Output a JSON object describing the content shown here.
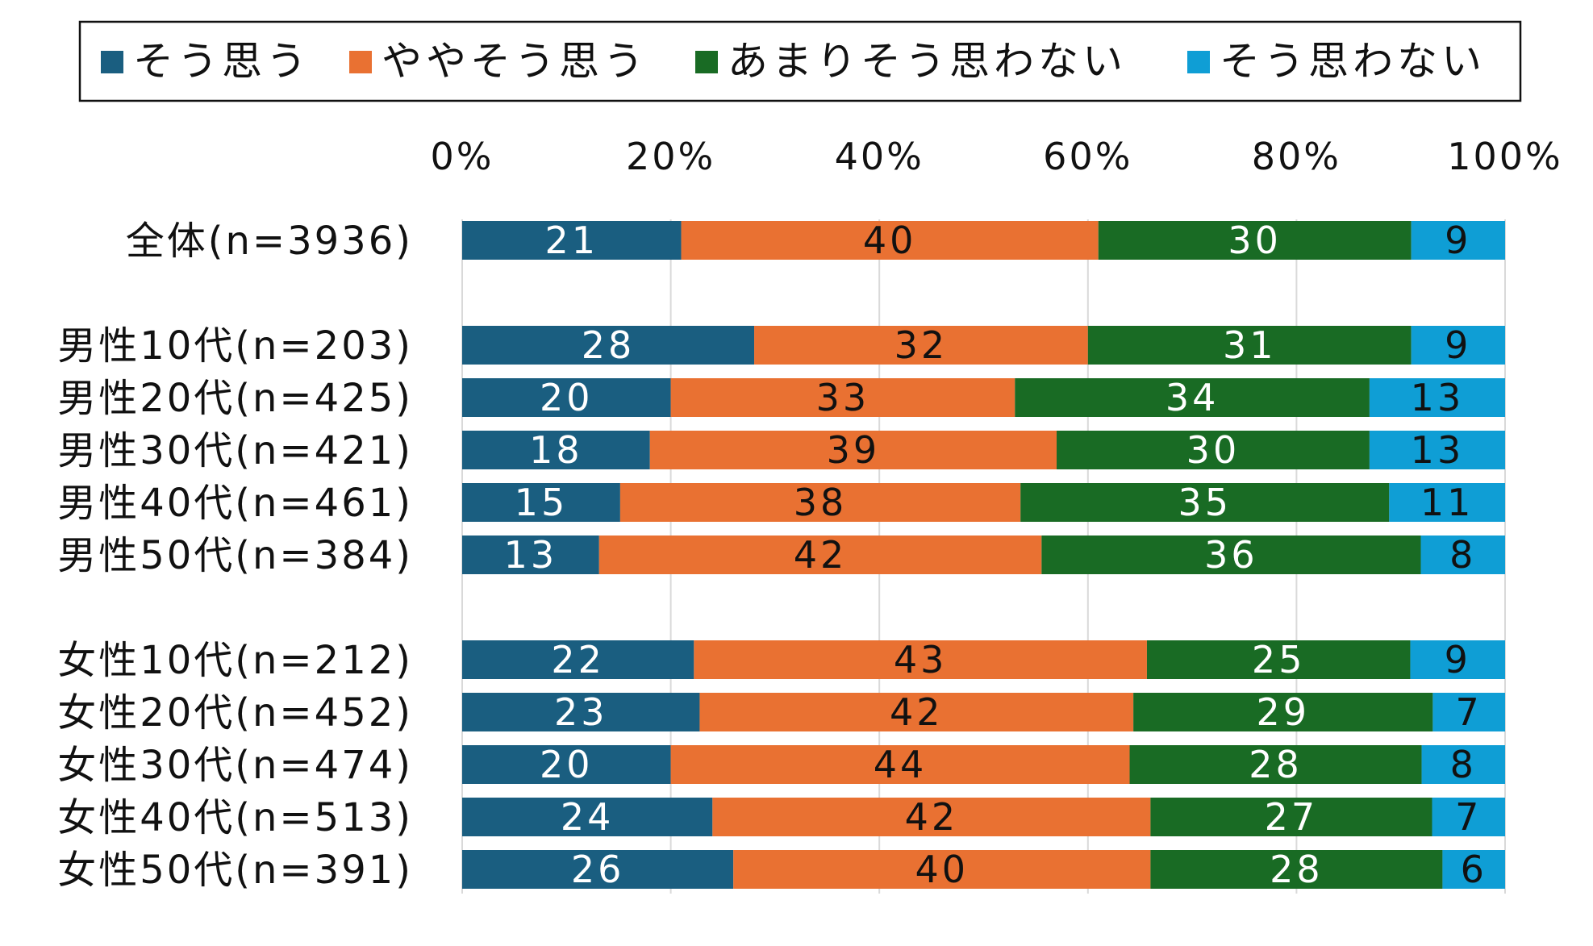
{
  "chart_data": {
    "type": "bar",
    "orientation": "horizontal",
    "stacked": true,
    "percent_stacked": true,
    "categories": [
      "全体(n=3936)",
      "男性10代(n=203)",
      "男性20代(n=425)",
      "男性30代(n=421)",
      "男性40代(n=461)",
      "男性50代(n=384)",
      "女性10代(n=212)",
      "女性20代(n=452)",
      "女性30代(n=474)",
      "女性40代(n=513)",
      "女性50代(n=391)"
    ],
    "series": [
      {
        "name": "そう思う",
        "color": "#1a5e80",
        "label_color": "#ffffff",
        "values": [
          21,
          28,
          20,
          18,
          15,
          13,
          22,
          23,
          20,
          24,
          26
        ]
      },
      {
        "name": "ややそう思う",
        "color": "#e97132",
        "label_color": "#111111",
        "values": [
          40,
          32,
          33,
          39,
          38,
          42,
          43,
          42,
          44,
          42,
          40
        ]
      },
      {
        "name": "あまりそう思わない",
        "color": "#196b24",
        "label_color": "#ffffff",
        "values": [
          30,
          31,
          34,
          30,
          35,
          36,
          25,
          29,
          28,
          27,
          28
        ]
      },
      {
        "name": "そう思わない",
        "color": "#0f9ed5",
        "label_color": "#111111",
        "values": [
          9,
          9,
          13,
          13,
          11,
          8,
          9,
          7,
          8,
          7,
          6
        ]
      }
    ],
    "xlim": [
      0,
      100
    ],
    "x_ticks": [
      "0%",
      "20%",
      "40%",
      "60%",
      "80%",
      "100%"
    ],
    "x_tick_values": [
      0,
      20,
      40,
      60,
      80,
      100
    ],
    "x_axis_position": "top",
    "grid": true,
    "legend_position": "top",
    "group_gaps_after": [
      "全体(n=3936)",
      "男性50代(n=384)"
    ],
    "title": "",
    "xlabel": "",
    "ylabel": ""
  }
}
